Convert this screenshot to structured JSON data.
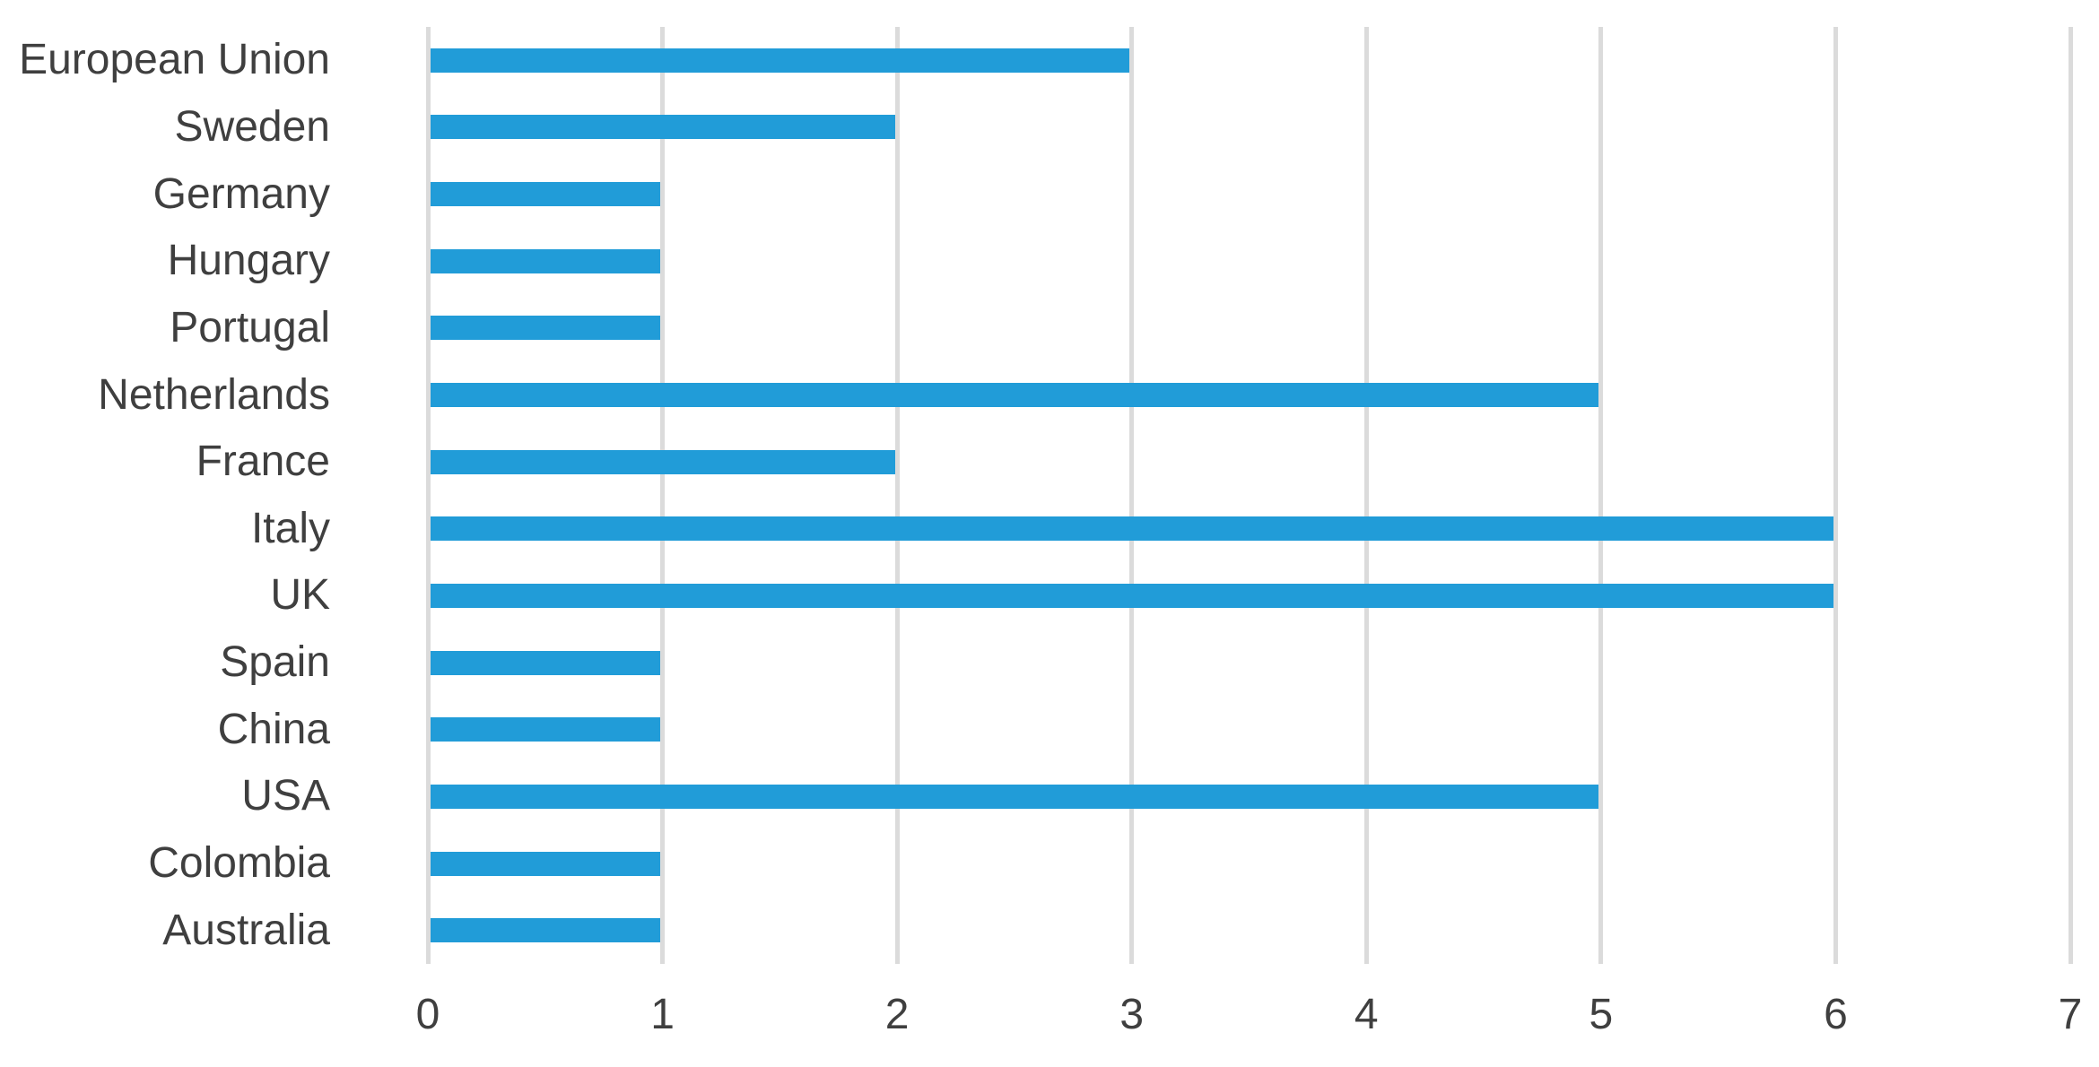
{
  "chart_data": {
    "type": "bar",
    "orientation": "horizontal",
    "title": "",
    "xlabel": "",
    "ylabel": "",
    "categories": [
      "European Union",
      "Sweden",
      "Germany",
      "Hungary",
      "Portugal",
      "Netherlands",
      "France",
      "Italy",
      "UK",
      "Spain",
      "China",
      "USA",
      "Colombia",
      "Australia"
    ],
    "values": [
      3,
      2,
      1,
      1,
      1,
      5,
      2,
      6,
      6,
      1,
      1,
      5,
      1,
      1
    ],
    "xlim": [
      0,
      7
    ],
    "xticks": [
      "0",
      "1",
      "2",
      "3",
      "4",
      "5",
      "6",
      "7"
    ],
    "grid": "vertical-gridlines-on",
    "legend": "none",
    "colors": {
      "bar": "#219CD8",
      "gridline": "#DBDBDB",
      "label_text": "#3F3F3F",
      "background": "#FFFFFF"
    }
  }
}
